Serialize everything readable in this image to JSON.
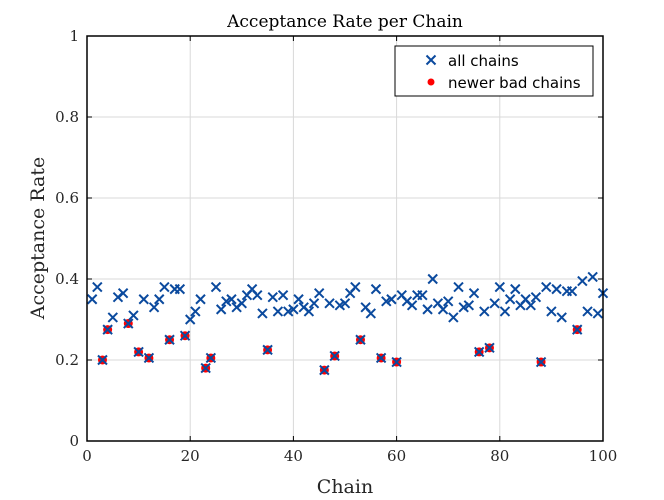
{
  "chart_data": {
    "type": "scatter",
    "title": "Acceptance Rate per Chain",
    "xlabel": "Chain",
    "ylabel": "Acceptance Rate",
    "xlim": [
      0,
      100
    ],
    "ylim": [
      0,
      1
    ],
    "xticks": [
      "0",
      "20",
      "40",
      "60",
      "80",
      "100"
    ],
    "yticks": [
      "0",
      "0.2",
      "0.4",
      "0.6",
      "0.8",
      "1"
    ],
    "grid": true,
    "legend_position": "top-right",
    "colors": {
      "all_chains": "#0b4a9e",
      "bad_chains": "#ff0000"
    },
    "series": [
      {
        "name": "all chains",
        "marker": "x",
        "x": [
          1,
          2,
          3,
          4,
          5,
          6,
          7,
          8,
          9,
          10,
          11,
          12,
          13,
          14,
          15,
          16,
          17,
          18,
          19,
          20,
          21,
          22,
          23,
          24,
          25,
          26,
          27,
          28,
          29,
          30,
          31,
          32,
          33,
          34,
          35,
          36,
          37,
          38,
          39,
          40,
          41,
          42,
          43,
          44,
          45,
          46,
          47,
          48,
          49,
          50,
          51,
          52,
          53,
          54,
          55,
          56,
          57,
          58,
          59,
          60,
          61,
          62,
          63,
          64,
          65,
          66,
          67,
          68,
          69,
          70,
          71,
          72,
          73,
          74,
          75,
          76,
          77,
          78,
          79,
          80,
          81,
          82,
          83,
          84,
          85,
          86,
          87,
          88,
          89,
          90,
          91,
          92,
          93,
          94,
          95,
          96,
          97,
          98,
          99,
          100
        ],
        "y": [
          0.35,
          0.38,
          0.2,
          0.275,
          0.305,
          0.355,
          0.365,
          0.29,
          0.31,
          0.22,
          0.35,
          0.205,
          0.33,
          0.35,
          0.38,
          0.25,
          0.375,
          0.375,
          0.26,
          0.3,
          0.32,
          0.35,
          0.18,
          0.205,
          0.38,
          0.325,
          0.345,
          0.35,
          0.33,
          0.34,
          0.36,
          0.375,
          0.36,
          0.315,
          0.225,
          0.355,
          0.32,
          0.36,
          0.32,
          0.325,
          0.35,
          0.33,
          0.32,
          0.34,
          0.365,
          0.175,
          0.34,
          0.21,
          0.335,
          0.34,
          0.365,
          0.38,
          0.25,
          0.33,
          0.315,
          0.375,
          0.205,
          0.345,
          0.35,
          0.195,
          0.36,
          0.345,
          0.335,
          0.36,
          0.36,
          0.325,
          0.4,
          0.34,
          0.325,
          0.345,
          0.305,
          0.38,
          0.33,
          0.335,
          0.365,
          0.22,
          0.32,
          0.23,
          0.34,
          0.38,
          0.32,
          0.35,
          0.375,
          0.335,
          0.35,
          0.335,
          0.355,
          0.195,
          0.38,
          0.32,
          0.375,
          0.305,
          0.37,
          0.37,
          0.275,
          0.395,
          0.32,
          0.405,
          0.315,
          0.365
        ]
      },
      {
        "name": "newer bad chains",
        "marker": "dot",
        "x": [
          3,
          4,
          8,
          10,
          12,
          16,
          19,
          23,
          24,
          35,
          46,
          48,
          53,
          57,
          60,
          76,
          78,
          88,
          95
        ],
        "y": [
          0.2,
          0.275,
          0.29,
          0.22,
          0.205,
          0.25,
          0.26,
          0.18,
          0.205,
          0.225,
          0.175,
          0.21,
          0.25,
          0.205,
          0.195,
          0.22,
          0.23,
          0.195,
          0.275
        ]
      }
    ]
  }
}
